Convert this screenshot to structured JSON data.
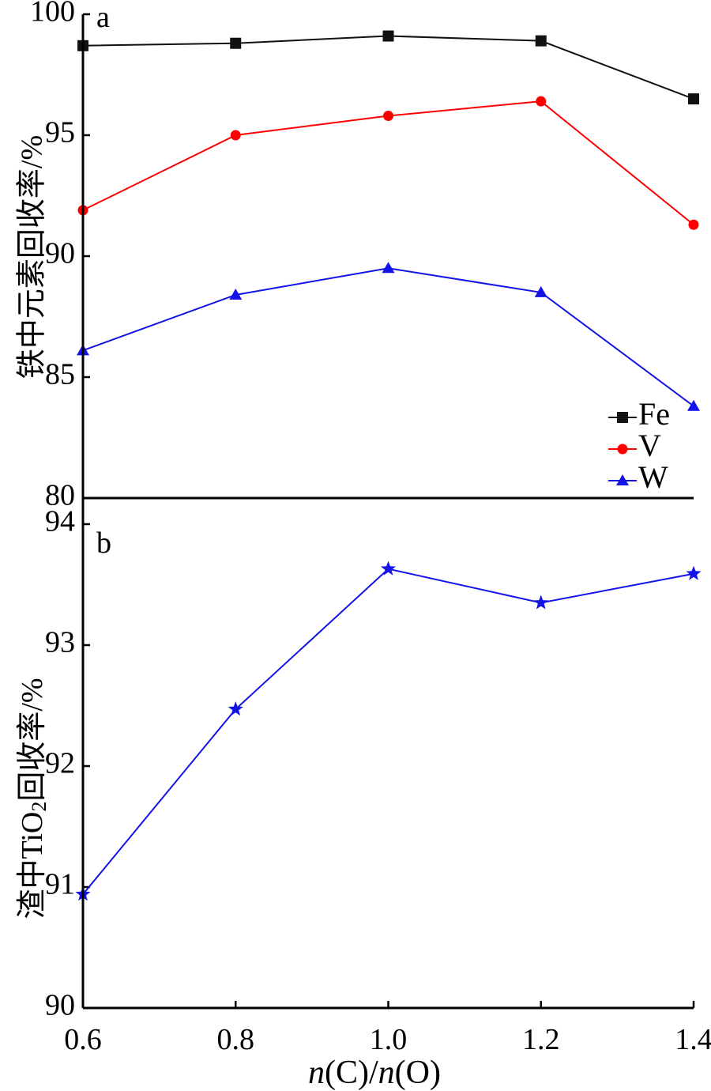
{
  "chart_data": [
    {
      "type": "line",
      "panel_label": "a",
      "ylabel": "铁中元素回收率/%",
      "xlim": [
        0.6,
        1.4
      ],
      "ylim": [
        80,
        100
      ],
      "yticks": [
        "100",
        "95",
        "90",
        "85",
        "80"
      ],
      "legend_position": "bottom-right",
      "x": [
        0.6,
        0.8,
        1.0,
        1.2,
        1.4
      ],
      "series": [
        {
          "name": "Fe",
          "values": [
            98.7,
            98.8,
            99.1,
            98.9,
            96.5
          ],
          "color": "#111111",
          "marker": "square"
        },
        {
          "name": "V",
          "values": [
            91.9,
            95.0,
            95.8,
            96.4,
            91.3
          ],
          "color": "#ff0000",
          "marker": "circle"
        },
        {
          "name": "W",
          "values": [
            86.1,
            88.4,
            89.5,
            88.5,
            83.8
          ],
          "color": "#1414e6",
          "marker": "triangle"
        }
      ]
    },
    {
      "type": "line",
      "panel_label": "b",
      "ylabel_parts": {
        "pre": "渣中TiO",
        "sub": "2",
        "post": "回收率/%"
      },
      "xlim": [
        0.6,
        1.4
      ],
      "ylim": [
        90,
        94
      ],
      "yticks": [
        "94",
        "93",
        "92",
        "91",
        "90"
      ],
      "x": [
        0.6,
        0.8,
        1.0,
        1.2,
        1.4
      ],
      "xticks": [
        "0.6",
        "0.8",
        "1.0",
        "1.2",
        "1.4"
      ],
      "xlabel_parts": {
        "n1": "n",
        "mid": "(C)/",
        "n2": "n",
        "end": "(O)"
      },
      "series": [
        {
          "values": [
            90.94,
            92.47,
            93.63,
            93.35,
            93.59
          ],
          "color": "#1414e6",
          "marker": "star"
        }
      ]
    }
  ]
}
